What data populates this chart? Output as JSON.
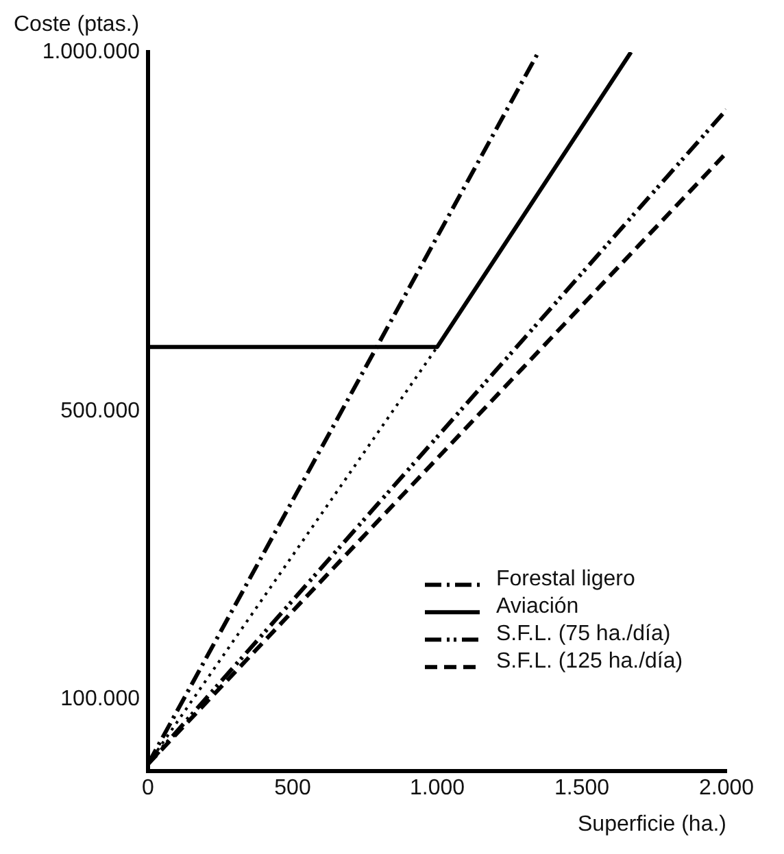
{
  "chart_data": {
    "type": "line",
    "xlabel": "Superficie (ha.)",
    "ylabel": "Coste (ptas.)",
    "xlim": [
      0,
      2000
    ],
    "ylim": [
      0,
      1000000
    ],
    "xticks": [
      0,
      500,
      {
        "value": 1000,
        "label": "1.000"
      },
      {
        "value": 1500,
        "label": "1.500"
      },
      {
        "value": 2000,
        "label": "2.000"
      }
    ],
    "yticks": [
      {
        "value": 100000,
        "label": "100.000"
      },
      {
        "value": 500000,
        "label": "500.000"
      },
      {
        "value": 1000000,
        "label": "1.000.000"
      }
    ],
    "grid": false,
    "legend": "bottom right",
    "marker": "none",
    "series": [
      {
        "name": "Forestal ligero",
        "color": "#000000",
        "line_style": "dashdot",
        "x": [
          0,
          1350
        ],
        "values": [
          10000,
          1000000
        ]
      },
      {
        "name": "Aviación",
        "color": "#000000",
        "line_style": "solid",
        "x": [
          0,
          1000,
          1670
        ],
        "values": [
          590000,
          590000,
          1000000
        ]
      },
      {
        "name": "S.F.L. (75 ha./día)",
        "color": "#000000",
        "line_style": "dashdotdot",
        "x": [
          0,
          2000
        ],
        "values": [
          10000,
          920000
        ]
      },
      {
        "name": "S.F.L. (125 ha./día)",
        "color": "#000000",
        "line_style": "dashed",
        "x": [
          0,
          2000
        ],
        "values": [
          10000,
          860000
        ]
      },
      {
        "color": "#000000",
        "line_style": "dotted",
        "x": [
          0,
          1000
        ],
        "values": [
          10000,
          590000
        ]
      }
    ]
  }
}
